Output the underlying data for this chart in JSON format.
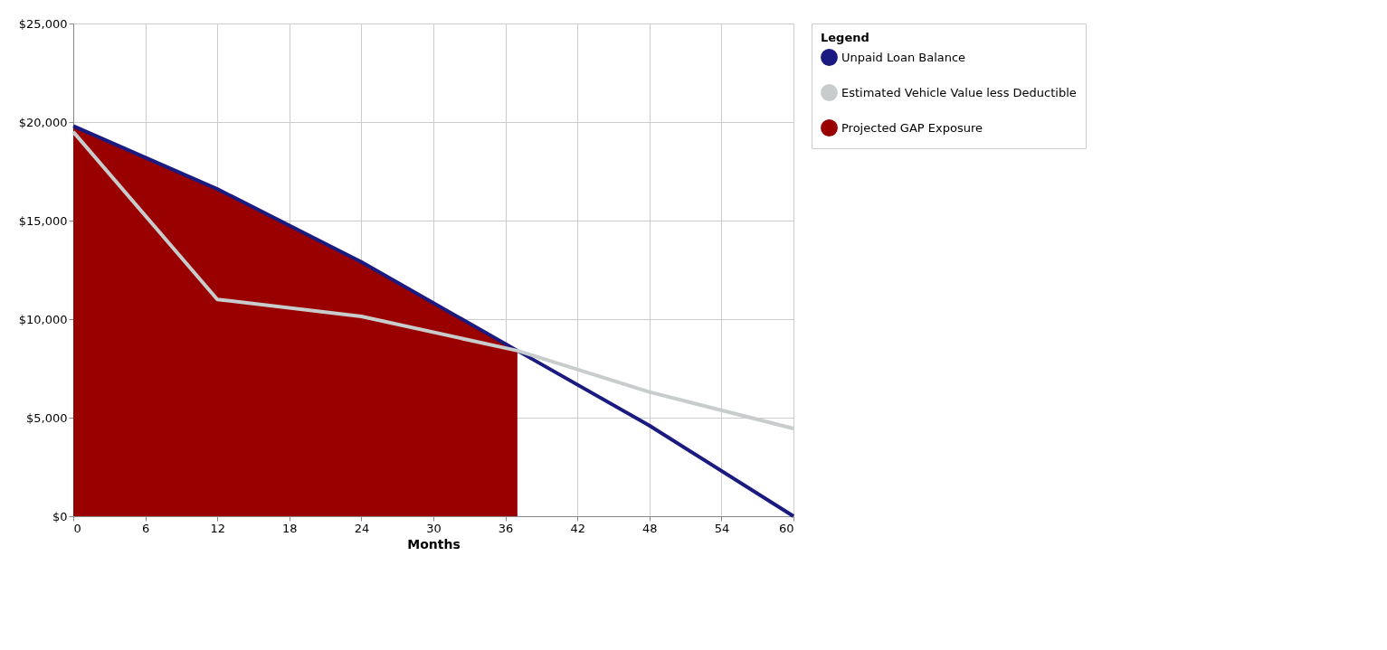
{
  "chart_data": {
    "type": "line",
    "xlabel": "Months",
    "legend_title": "Legend",
    "legend": "right",
    "grid": true,
    "xlim": [
      0,
      60
    ],
    "xticks": [
      0,
      6,
      12,
      18,
      24,
      30,
      36,
      42,
      48,
      54,
      60
    ],
    "ylim": [
      0,
      25000
    ],
    "yticks": [
      {
        "value": 0,
        "label": "$0"
      },
      {
        "value": 5000,
        "label": "$5,000"
      },
      {
        "value": 10000,
        "label": "$10,000"
      },
      {
        "value": 15000,
        "label": "$15,000"
      },
      {
        "value": 20000,
        "label": "$20,000"
      },
      {
        "value": 25000,
        "label": "$25,000"
      }
    ],
    "series": [
      {
        "name": "Projected GAP Exposure",
        "type": "area",
        "color": "#990000",
        "x": [
          0,
          12,
          24,
          37
        ],
        "values": [
          19800,
          16600,
          12900,
          8400
        ]
      },
      {
        "name": "Unpaid Loan Balance",
        "color": "#1a1a80",
        "x": [
          0,
          12,
          24,
          37,
          48,
          60
        ],
        "values": [
          19800,
          16600,
          12900,
          8400,
          4600,
          0
        ]
      },
      {
        "name": "Estimated Vehicle Value less Deductible",
        "color": "#c8cccc",
        "x": [
          0,
          12,
          24,
          37,
          48,
          60
        ],
        "values": [
          19500,
          11000,
          10140,
          8400,
          6300,
          4450
        ]
      }
    ]
  }
}
